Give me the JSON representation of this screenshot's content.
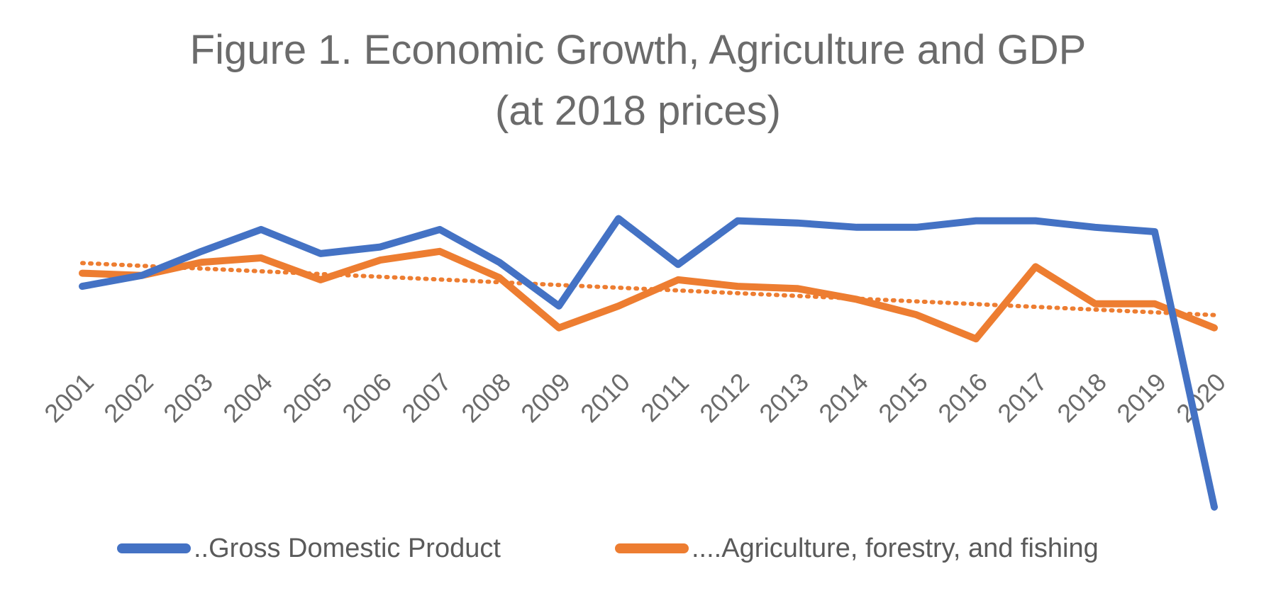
{
  "chart_data": {
    "type": "line",
    "title": "Figure 1. Economic Growth, Agriculture and GDP",
    "subtitle": "(at 2018 prices)",
    "categories": [
      "2001",
      "2002",
      "2003",
      "2004",
      "2005",
      "2006",
      "2007",
      "2008",
      "2009",
      "2010",
      "2011",
      "2012",
      "2013",
      "2014",
      "2015",
      "2016",
      "2017",
      "2018",
      "2019",
      "2020"
    ],
    "series": [
      {
        "name": "Gross Domestic Product",
        "legend_label": "..Gross Domestic Product",
        "color": "#4472C4",
        "values": [
          3.9,
          4.4,
          5.5,
          6.5,
          5.4,
          5.7,
          6.5,
          5.0,
          3.0,
          7.0,
          4.9,
          6.9,
          6.8,
          6.6,
          6.6,
          6.9,
          6.9,
          6.6,
          6.4,
          -6.2
        ]
      },
      {
        "name": "Agriculture, forestry, and fishing",
        "legend_label": "....Agriculture, forestry, and fishing",
        "color": "#ED7D31",
        "values": [
          4.5,
          4.4,
          5.0,
          5.2,
          4.2,
          5.1,
          5.5,
          4.3,
          2.0,
          3.0,
          4.2,
          3.9,
          3.8,
          3.3,
          2.6,
          1.5,
          4.8,
          3.1,
          3.1,
          2.0
        ],
        "trendline": "linear"
      }
    ],
    "ylim": [
      -6.6,
      7.6
    ],
    "xlabel": "",
    "ylabel": "",
    "grid": false,
    "legend_position": "bottom"
  }
}
